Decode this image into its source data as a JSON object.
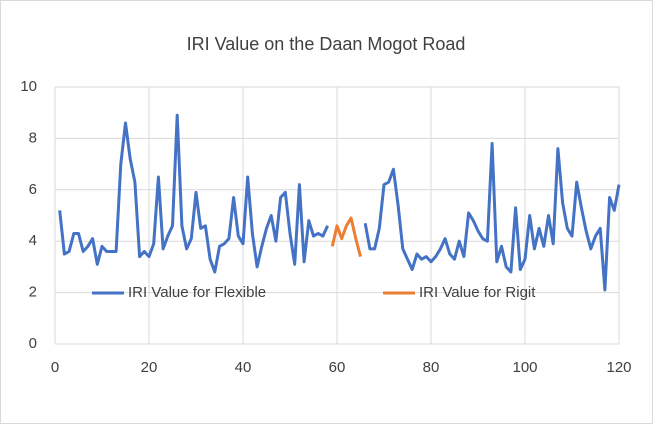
{
  "chart_data": {
    "type": "line",
    "title": "IRI Value on the Daan Mogot Road",
    "x": [
      1,
      2,
      3,
      4,
      5,
      6,
      7,
      8,
      9,
      10,
      11,
      12,
      13,
      14,
      15,
      16,
      17,
      18,
      19,
      20,
      21,
      22,
      23,
      24,
      25,
      26,
      27,
      28,
      29,
      30,
      31,
      32,
      33,
      34,
      35,
      36,
      37,
      38,
      39,
      40,
      41,
      42,
      43,
      44,
      45,
      46,
      47,
      48,
      49,
      50,
      51,
      52,
      53,
      54,
      55,
      56,
      57,
      58,
      59,
      60,
      61,
      62,
      63,
      64,
      65,
      66,
      67,
      68,
      69,
      70,
      71,
      72,
      73,
      74,
      75,
      76,
      77,
      78,
      79,
      80,
      81,
      82,
      83,
      84,
      85,
      86,
      87,
      88,
      89,
      90,
      91,
      92,
      93,
      94,
      95,
      96,
      97,
      98,
      99,
      100,
      101,
      102,
      103,
      104,
      105,
      106,
      107,
      108,
      109,
      110,
      111,
      112,
      113,
      114,
      115,
      116,
      117,
      118,
      119,
      120
    ],
    "series": [
      {
        "name": "IRI Value for Flexible",
        "color": "#4472c4",
        "values": [
          5.2,
          3.5,
          3.6,
          4.3,
          4.3,
          3.6,
          3.8,
          4.1,
          3.1,
          3.8,
          3.6,
          3.6,
          3.6,
          7.0,
          8.6,
          7.2,
          6.3,
          3.4,
          3.6,
          3.4,
          3.9,
          6.5,
          3.7,
          4.2,
          4.6,
          8.9,
          4.6,
          3.7,
          4.1,
          5.9,
          4.5,
          4.6,
          3.3,
          2.8,
          3.8,
          3.9,
          4.1,
          5.7,
          4.2,
          3.9,
          6.5,
          4.3,
          3.0,
          3.8,
          4.5,
          5.0,
          4.0,
          5.7,
          5.9,
          4.3,
          3.1,
          6.2,
          3.2,
          4.8,
          4.2,
          4.3,
          4.2,
          4.6,
          null,
          null,
          null,
          null,
          null,
          null,
          null,
          4.7,
          3.7,
          3.7,
          4.5,
          6.2,
          6.3,
          6.8,
          5.4,
          3.7,
          3.3,
          2.9,
          3.5,
          3.3,
          3.4,
          3.2,
          3.4,
          3.7,
          4.1,
          3.5,
          3.3,
          4.0,
          3.4,
          5.1,
          4.8,
          4.4,
          4.1,
          4.0,
          7.8,
          3.2,
          3.8,
          3.0,
          2.8,
          5.3,
          2.9,
          3.3,
          5.0,
          3.7,
          4.5,
          3.8,
          5.0,
          3.9,
          7.6,
          5.5,
          4.5,
          4.2,
          6.3,
          5.3,
          4.4,
          3.7,
          4.2,
          4.5,
          2.1,
          5.7,
          5.2,
          6.2
        ]
      },
      {
        "name": "IRI Value for Rigit",
        "color": "#ed7d31",
        "values": [
          null,
          null,
          null,
          null,
          null,
          null,
          null,
          null,
          null,
          null,
          null,
          null,
          null,
          null,
          null,
          null,
          null,
          null,
          null,
          null,
          null,
          null,
          null,
          null,
          null,
          null,
          null,
          null,
          null,
          null,
          null,
          null,
          null,
          null,
          null,
          null,
          null,
          null,
          null,
          null,
          null,
          null,
          null,
          null,
          null,
          null,
          null,
          null,
          null,
          null,
          null,
          null,
          null,
          null,
          null,
          null,
          null,
          null,
          3.8,
          4.6,
          4.1,
          4.6,
          4.9,
          4.1,
          3.4,
          null,
          null,
          null,
          null,
          null,
          null,
          null,
          null,
          null,
          null,
          null,
          null,
          null,
          null,
          null,
          null,
          null,
          null,
          null,
          null,
          null,
          null,
          null,
          null,
          null,
          null,
          null,
          null,
          null,
          null,
          null,
          null,
          null,
          null,
          null,
          null,
          null,
          null,
          null,
          null,
          null,
          null,
          null,
          null,
          null,
          null,
          null,
          null,
          null,
          null,
          null,
          null,
          null,
          null,
          null
        ]
      }
    ],
    "xlim": [
      0,
      120
    ],
    "xticks": [
      0,
      20,
      40,
      60,
      80,
      100,
      120
    ],
    "ylim": [
      0,
      10
    ],
    "yticks": [
      0,
      2,
      4,
      6,
      8,
      10
    ],
    "grid": true,
    "legend": "bottom"
  }
}
